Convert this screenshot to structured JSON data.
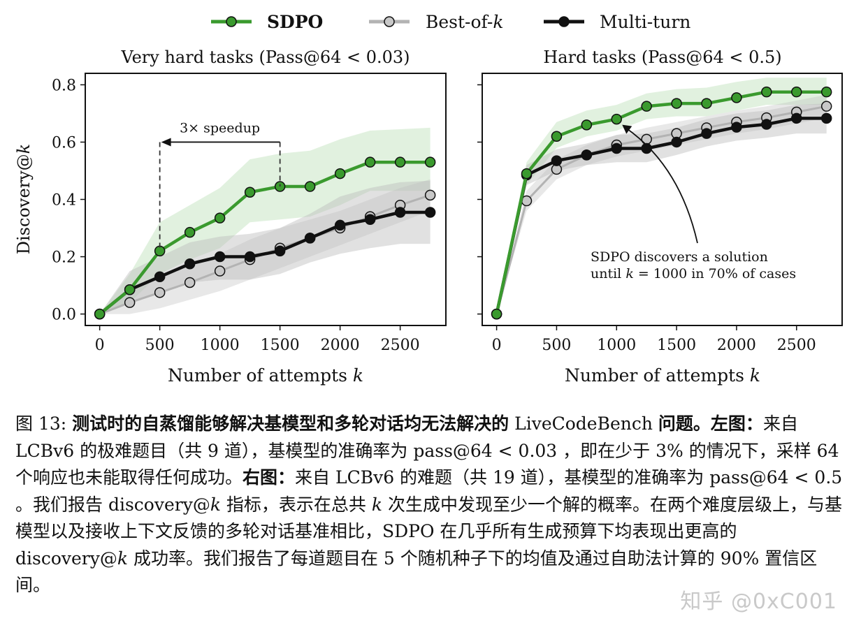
{
  "legend": [
    {
      "label": "SDPO",
      "color": "#3a9a2e",
      "bold": true
    },
    {
      "label": "Best-of-",
      "label_italic": "k",
      "color": "#b3b3b3",
      "bold": false
    },
    {
      "label": "Multi-turn",
      "color": "#111111",
      "bold": false
    }
  ],
  "colors": {
    "sdpo": "#3a9a2e",
    "sdpo_band": "#c8e6c4",
    "bestofk": "#b3b3b3",
    "multiturn": "#111111",
    "band_gray": "#bdbdbd"
  },
  "chart_data": [
    {
      "type": "line",
      "title": "Very hard tasks (Pass@64 < 0.03)",
      "xlabel": "Number of attempts",
      "xlabel_italic": "k",
      "ylabel": "Discovery@",
      "ylabel_italic": "k",
      "xlim": [
        -120,
        2880
      ],
      "ylim": [
        -0.04,
        0.84
      ],
      "xticks": [
        0,
        500,
        1000,
        1500,
        2000,
        2500
      ],
      "yticks": [
        0.0,
        0.2,
        0.4,
        0.6,
        0.8
      ],
      "ytick_labels": [
        "0.0",
        "0.2",
        "0.4",
        "0.6",
        "0.8"
      ],
      "grid": false,
      "x": [
        0,
        250,
        500,
        750,
        1000,
        1250,
        1500,
        1750,
        2000,
        2250,
        2500,
        2750
      ],
      "series": [
        {
          "name": "SDPO",
          "key": "sdpo",
          "values": [
            0.0,
            0.085,
            0.22,
            0.285,
            0.335,
            0.425,
            0.445,
            0.445,
            0.49,
            0.53,
            0.53,
            0.53
          ],
          "band_low": [
            0.0,
            0.04,
            0.14,
            0.19,
            0.23,
            0.32,
            0.33,
            0.34,
            0.38,
            0.43,
            0.43,
            0.43
          ],
          "band_high": [
            0.0,
            0.14,
            0.32,
            0.38,
            0.44,
            0.54,
            0.56,
            0.57,
            0.61,
            0.64,
            0.645,
            0.65
          ]
        },
        {
          "name": "Best-of-k",
          "key": "bestofk",
          "values": [
            0.0,
            0.04,
            0.075,
            0.11,
            0.15,
            0.19,
            0.23,
            0.265,
            0.3,
            0.34,
            0.38,
            0.415
          ],
          "band_low": [
            0.0,
            0.0,
            0.02,
            0.05,
            0.08,
            0.12,
            0.16,
            0.2,
            0.24,
            0.28,
            0.32,
            0.36
          ],
          "band_high": [
            0.0,
            0.08,
            0.13,
            0.17,
            0.21,
            0.26,
            0.3,
            0.33,
            0.36,
            0.4,
            0.44,
            0.47
          ]
        },
        {
          "name": "Multi-turn",
          "key": "multiturn",
          "values": [
            0.0,
            0.085,
            0.13,
            0.175,
            0.2,
            0.2,
            0.22,
            0.265,
            0.31,
            0.33,
            0.355,
            0.355
          ],
          "band_low": [
            0.0,
            0.04,
            0.07,
            0.11,
            0.12,
            0.12,
            0.14,
            0.18,
            0.21,
            0.23,
            0.245,
            0.245
          ],
          "band_high": [
            0.0,
            0.15,
            0.2,
            0.25,
            0.27,
            0.28,
            0.3,
            0.35,
            0.41,
            0.44,
            0.46,
            0.465
          ]
        }
      ],
      "annotations": [
        {
          "text": "3× speedup",
          "x_from": 1500,
          "x_to": 500,
          "y": 0.6
        }
      ]
    },
    {
      "type": "line",
      "title": "Hard tasks (Pass@64 < 0.5)",
      "xlabel": "Number of attempts",
      "xlabel_italic": "k",
      "xlim": [
        -120,
        2880
      ],
      "ylim": [
        -0.04,
        0.84
      ],
      "xticks": [
        0,
        500,
        1000,
        1500,
        2000,
        2500
      ],
      "yticks": [
        0.0,
        0.2,
        0.4,
        0.6,
        0.8
      ],
      "grid": false,
      "x": [
        0,
        250,
        500,
        750,
        1000,
        1250,
        1500,
        1750,
        2000,
        2250,
        2500,
        2750
      ],
      "series": [
        {
          "name": "SDPO",
          "key": "sdpo",
          "values": [
            0.0,
            0.49,
            0.62,
            0.66,
            0.68,
            0.725,
            0.735,
            0.735,
            0.755,
            0.775,
            0.775,
            0.775
          ],
          "band_low": [
            0.0,
            0.45,
            0.58,
            0.62,
            0.64,
            0.68,
            0.69,
            0.69,
            0.71,
            0.73,
            0.73,
            0.73
          ],
          "band_high": [
            0.0,
            0.53,
            0.67,
            0.71,
            0.73,
            0.77,
            0.785,
            0.79,
            0.81,
            0.825,
            0.825,
            0.825
          ]
        },
        {
          "name": "Best-of-k",
          "key": "bestofk",
          "values": [
            0.0,
            0.395,
            0.505,
            0.555,
            0.59,
            0.61,
            0.63,
            0.65,
            0.67,
            0.685,
            0.705,
            0.725
          ],
          "band_low": [
            0.0,
            0.36,
            0.47,
            0.52,
            0.55,
            0.57,
            0.59,
            0.61,
            0.63,
            0.645,
            0.665,
            0.685
          ],
          "band_high": [
            0.0,
            0.43,
            0.54,
            0.59,
            0.625,
            0.65,
            0.67,
            0.69,
            0.71,
            0.725,
            0.745,
            0.765
          ]
        },
        {
          "name": "Multi-turn",
          "key": "multiturn",
          "values": [
            0.0,
            0.485,
            0.535,
            0.555,
            0.578,
            0.578,
            0.6,
            0.63,
            0.652,
            0.662,
            0.683,
            0.683
          ],
          "band_low": [
            0.0,
            0.45,
            0.5,
            0.52,
            0.53,
            0.53,
            0.555,
            0.585,
            0.605,
            0.615,
            0.63,
            0.63
          ],
          "band_high": [
            0.0,
            0.52,
            0.575,
            0.595,
            0.625,
            0.63,
            0.65,
            0.68,
            0.7,
            0.71,
            0.73,
            0.735
          ]
        }
      ],
      "annotations": [
        {
          "text_line1": "SDPO discovers a solution",
          "text_line2_before": "until ",
          "text_line2_italic": "k",
          "text_line2_after": " = 1000 in 70% of cases",
          "arrow_to_x": 1000,
          "arrow_to_y": 0.68
        }
      ]
    }
  ],
  "caption": {
    "fig_label": "图 13: ",
    "bold_title": "测试时的自蒸馏能够解决基模型和多轮对话均无法解决的",
    "title_normal": " LiveCodeBench ",
    "bold_title2": "问题。左图：",
    "left_text": "来自 LCBv6 的极难题目（共 9 道），基模型的准确率为 pass@64 < 0.03 ，即在少于 3% 的情况下，采样 64 个响应也未能取得任何成功。",
    "bold_right": "右图：",
    "right_text": "来自 LCBv6 的难题（共 19 道），基模型的准确率为 pass@64 < 0.5 。我们报告 discovery@",
    "k1": "k",
    "right_text2": " 指标，表示在总共 ",
    "k2": "k",
    "right_text3": " 次生成中发现至少一个解的概率。在两个难度层级上，与基模型以及接收上下文反馈的多轮对话基准相比，SDPO 在几乎所有生成预算下均表现出更高的 discovery@",
    "k3": "k",
    "right_text4": " 成功率。我们报告了每道题目在 5 个随机种子下的均值及通过自助法计算的 90% 置信区间。"
  },
  "watermark": "知乎 @0xC001"
}
